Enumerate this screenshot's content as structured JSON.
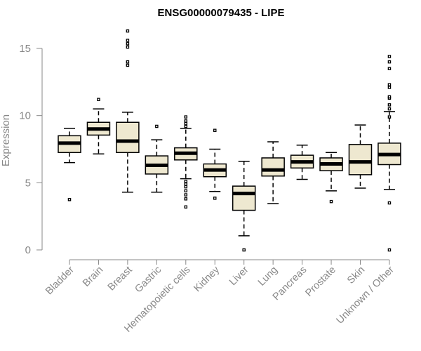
{
  "colors": {
    "box_fill": "#EEE8D0",
    "box_stroke": "#000000",
    "axis": "#888888",
    "text": "#888888",
    "title": "#000000"
  },
  "chart_data": {
    "type": "boxplot",
    "title": "ENSG00000079435 - LIPE",
    "xlabel": "",
    "ylabel": "Expression",
    "ylim": [
      0,
      15
    ],
    "yticks": [
      0,
      5,
      10,
      15
    ],
    "categories": [
      "Bladder",
      "Brain",
      "Breast",
      "Gastric",
      "Hematopoietic cells",
      "Kidney",
      "Liver",
      "Lung",
      "Pancreas",
      "Prostate",
      "Skin",
      "Unknown / Other"
    ],
    "boxes": [
      {
        "whisker_low": 6.5,
        "q1": 7.25,
        "median": 7.95,
        "q3": 8.5,
        "whisker_high": 9.05,
        "outliers": [
          3.75
        ]
      },
      {
        "whisker_low": 7.15,
        "q1": 8.55,
        "median": 9.0,
        "q3": 9.5,
        "whisker_high": 10.5,
        "outliers": [
          11.2
        ]
      },
      {
        "whisker_low": 4.3,
        "q1": 7.25,
        "median": 8.1,
        "q3": 9.5,
        "whisker_high": 10.25,
        "outliers": [
          13.75,
          14.0,
          15.1,
          15.35,
          15.6,
          16.3
        ]
      },
      {
        "whisker_low": 4.3,
        "q1": 5.65,
        "median": 6.3,
        "q3": 7.0,
        "whisker_high": 8.2,
        "outliers": [
          9.2
        ]
      },
      {
        "whisker_low": 5.3,
        "q1": 6.7,
        "median": 7.2,
        "q3": 7.6,
        "whisker_high": 9.05,
        "outliers": [
          3.2,
          3.8,
          4.1,
          4.4,
          4.7,
          4.9,
          5.1,
          9.2,
          9.4,
          9.6,
          9.9
        ]
      },
      {
        "whisker_low": 4.35,
        "q1": 5.45,
        "median": 5.95,
        "q3": 6.4,
        "whisker_high": 7.5,
        "outliers": [
          3.85,
          8.9
        ]
      },
      {
        "whisker_low": 1.05,
        "q1": 2.95,
        "median": 4.2,
        "q3": 4.75,
        "whisker_high": 6.6,
        "outliers": [
          0.0
        ]
      },
      {
        "whisker_low": 3.45,
        "q1": 5.5,
        "median": 5.95,
        "q3": 6.85,
        "whisker_high": 8.05,
        "outliers": []
      },
      {
        "whisker_low": 5.25,
        "q1": 6.1,
        "median": 6.55,
        "q3": 7.05,
        "whisker_high": 7.8,
        "outliers": []
      },
      {
        "whisker_low": 4.4,
        "q1": 5.9,
        "median": 6.4,
        "q3": 6.85,
        "whisker_high": 7.25,
        "outliers": [
          3.6
        ]
      },
      {
        "whisker_low": 4.6,
        "q1": 5.6,
        "median": 6.55,
        "q3": 7.85,
        "whisker_high": 9.3,
        "outliers": []
      },
      {
        "whisker_low": 4.5,
        "q1": 6.35,
        "median": 7.1,
        "q3": 7.95,
        "whisker_high": 10.3,
        "outliers": [
          0.0,
          3.5,
          9.9,
          10.5,
          10.8,
          11.3,
          11.4,
          12.1,
          12.3,
          13.5,
          14.0,
          14.4
        ]
      }
    ]
  }
}
